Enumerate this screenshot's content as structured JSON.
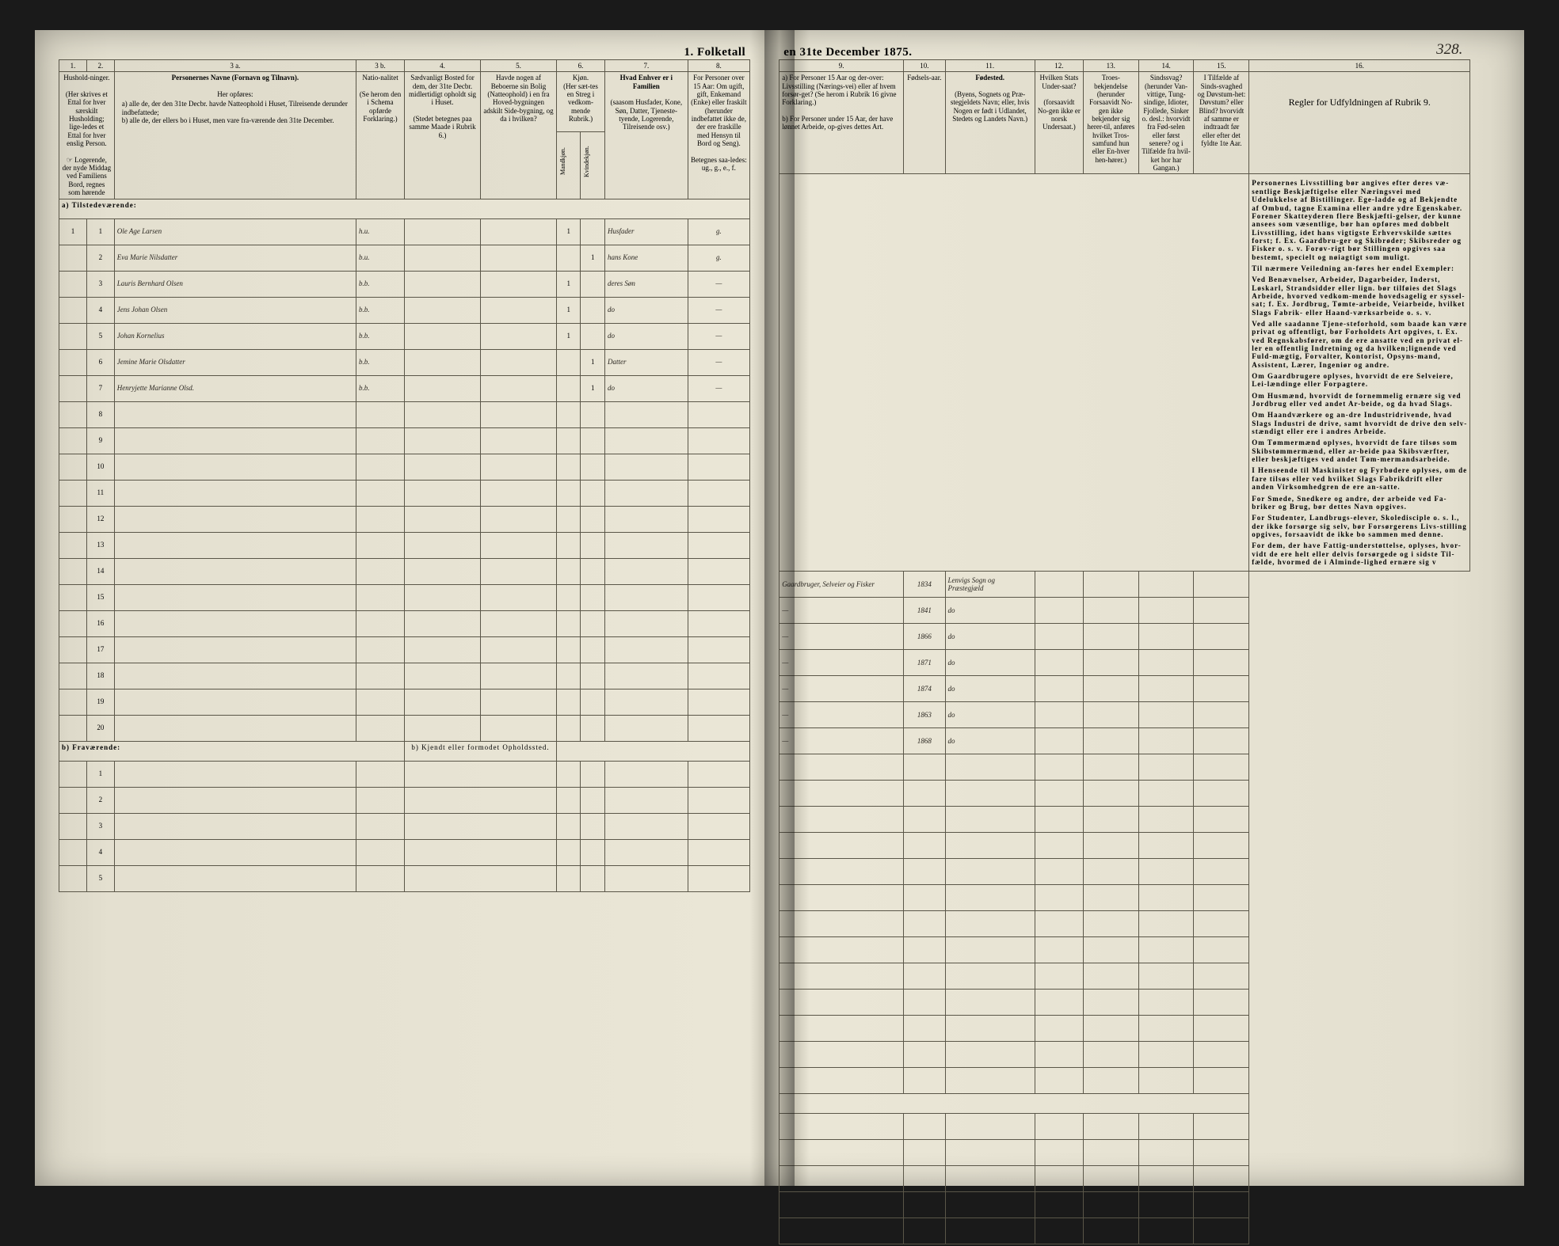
{
  "title_left": "1. Folketall",
  "title_right": "en 31te December 1875.",
  "page_number": "328.",
  "left_cols": {
    "c1": "1.",
    "c2": "2.",
    "c3a": "3 a.",
    "c3b": "3 b.",
    "c4": "4.",
    "c5": "5.",
    "c6": "6.",
    "c7": "7.",
    "c8": "8."
  },
  "right_cols": {
    "c9": "9.",
    "c10": "10.",
    "c11": "11.",
    "c12": "12.",
    "c13": "13.",
    "c14": "14.",
    "c15": "15.",
    "c16": "16."
  },
  "left_headers": {
    "h1": "Hushold-ninger.",
    "h1b": "(Her skrives et Ettal for hver særskilt Husholding; lige-ledes et Ettal for hver enslig Person.",
    "h1c": "☞ Logerende, der nyde Middag ved Familiens Bord, regnes som hørende",
    "h3a": "Personernes Navne (Fornavn og Tilnavn).",
    "h3a2": "Her opføres:",
    "h3a3": "a) alle de, der den 31te Decbr. havde Natteophold i Huset, Tilreisende derunder indbefattede;",
    "h3a4": "b) alle de, der ellers bo i Huset, men vare fra-værende den 31te December.",
    "h3b": "Natio-nalitet",
    "h3b2": "(Se herom den i Schema opførde Forklaring.)",
    "h4": "Sædvanligt Bosted for dem, der 31te Decbr. midlertidigt opholdt sig i Huset.",
    "h4b": "(Stedet betegnes paa samme Maade i Rubrik 6.)",
    "h5": "Havde nogen af Beboerne sin Bolig (Natteophold) i en fra Hoved-bygningen adskilt Side-bygning, og da i hvilken?",
    "h6": "Kjøn.",
    "h6a": "(Her sæt-tes en Streg i vedkom-mende Rubrik.)",
    "h6m": "Mandkjøn.",
    "h6k": "Kvindekjøn.",
    "h7": "Hvad Enhver er i Familien",
    "h7b": "(saasom Husfader, Kone, Søn, Datter, Tjeneste-tyende, Logerende, Tilreisende osv.)",
    "h8": "For Personer over 15 Aar: Om ugift, gift, Enkemand (Enke) eller fraskilt",
    "h8b": "(herunder indbefattet ikke de, der ere fraskille med Hensyn til Bord og Seng).",
    "h8c": "Betegnes saa-ledes: ug., g., e., f."
  },
  "right_headers": {
    "h9a": "a) For Personer 15 Aar og der-over: Livsstilling (Nærings-vei) eller af hvem forsør-get? (Se herom i Rubrik 16 givne Forklaring.)",
    "h9b": "b) For Personer under 15 Aar, der have lønnet Arbeide, op-gives dettes Art.",
    "h10": "Fødsels-aar.",
    "h11": "Fødested.",
    "h11b": "(Byens, Sognets og Præ-stegjeldets Navn; eller, hvis Nogen er født i Udlandet, Stedets og Landets Navn.)",
    "h12": "Hvilken Stats Under-saat?",
    "h12b": "(forsaavidt No-gen ikke er norsk Undersaat.)",
    "h13": "Troes-bekjendelse",
    "h13b": "(herunder Forsaavidt No-gen ikke bekjender sig herer-til, anføres hvilket Tros-samfund hun eller En-hver hen-hører.)",
    "h14": "Sindssvag?",
    "h14b": "(herunder Van-vittige, Tung-sindige, Idioter, Fjollede, Sinker o. desl.: hvorvidt fra Fød-selen eller først senere? og i Tilfælde fra hvil-ket hor har Gangan.)",
    "h15": "I Tilfælde af Sinds-svaghed og Døvstum-het:",
    "h15b": "Døvstum? eller Blind? hvorvidt af samme er indtraadt før eller efter det fyldte 1te Aar.",
    "h16": "Regler for Udfyldningen af Rubrik 9."
  },
  "section_a": "a)   Tilstedeværende:",
  "section_b": "b)   Fraværende:",
  "section_b_col": "b) Kjendt eller formodet Opholdssted.",
  "rows": [
    {
      "n": "1",
      "name": "Ole Age Larsen",
      "nat": "h.u.",
      "m": "1",
      "k": "",
      "role": "Husfader",
      "stat": "g.",
      "occ": "Gaardbruger, Selveier og Fisker",
      "year": "1834",
      "place": "Lenvigs Sogn og Præstegjæld"
    },
    {
      "n": "2",
      "name": "Eva Marie Nilsdatter",
      "nat": "b.u.",
      "m": "",
      "k": "1",
      "role": "hans Kone",
      "stat": "g.",
      "occ": "—",
      "year": "1841",
      "place": "do"
    },
    {
      "n": "3",
      "name": "Lauris Bernhard Olsen",
      "nat": "b.b.",
      "m": "1",
      "k": "",
      "role": "deres Søn",
      "stat": "—",
      "occ": "—",
      "year": "1866",
      "place": "do"
    },
    {
      "n": "4",
      "name": "Jens Johan Olsen",
      "nat": "b.b.",
      "m": "1",
      "k": "",
      "role": "do",
      "stat": "—",
      "occ": "—",
      "year": "1871",
      "place": "do"
    },
    {
      "n": "5",
      "name": "Johan Kornelius",
      "nat": "b.b.",
      "m": "1",
      "k": "",
      "role": "do",
      "stat": "—",
      "occ": "—",
      "year": "1874",
      "place": "do"
    },
    {
      "n": "6",
      "name": "Jemine Marie Olsdatter",
      "nat": "b.b.",
      "m": "",
      "k": "1",
      "role": "Datter",
      "stat": "—",
      "occ": "—",
      "year": "1863",
      "place": "do"
    },
    {
      "n": "7",
      "name": "Henryjette Marianne Olsd.",
      "nat": "b.b.",
      "m": "",
      "k": "1",
      "role": "do",
      "stat": "—",
      "occ": "—",
      "year": "1868",
      "place": "do"
    }
  ],
  "blank_left": [
    "8",
    "9",
    "10",
    "11",
    "12",
    "13",
    "14",
    "15",
    "16",
    "17",
    "18",
    "19",
    "20"
  ],
  "blank_b": [
    "1",
    "2",
    "3",
    "4",
    "5"
  ],
  "rules": {
    "p1": "Personernes Livsstilling bør angives efter deres væ-sentlige Beskjæftigelse eller Næringsvei med Udelukkelse af Bistillinger. Ege-ladde og af Bekjendte af Ombud, tagne Examina eller andre ydre Egenskaber. Forener Skatteyderen flere Beskjæfti-gelser, der kunne ansees som væsentlige, bør han opføres med dobbelt Livsstilling, idet hans vigtigste Erhvervskilde sættes forst; f. Ex. Gaardbru-ger og Skibrøder; Skibsreder og Fisker o. s. v. Forøv-rigt bør Stillingen opgives saa",
    "p1b": "bestemt, specielt og nøiagtigt",
    "p1c": "som muligt.",
    "p2": "Til nærmere Veiledning an-føres her endel Exempler:",
    "p3": "Ved Benævnelser, Arbeider, Dagarbeider, Inderst, Løskarl, Strandsidder eller lign. bør tilføies det Slags Arbeide, hvorved vedkom-mende hovedsagelig er syssel-sat; f. Ex. Jordbrug, Tømte-arbeide, Veiarbeide, hvilket Slags Fabrik- eller Haand-værksarbeide o. s. v.",
    "p4": "Ved alle saadanne Tjene-steforhold, som baade kan være privat og offentligt, bør Forholdets Art opgives, t. Ex. ved Regnskabsfører, om de ere ansatte ved en privat el-ler en offentlig Indretning og da hvilken;lignende ved Fuld-mægtig, Forvalter, Kontorist, Opsyns-mand, Assistent, Lærer, Ingeniør og andre.",
    "p5": "Om Gaardbrugere oplyses, hvorvidt de ere Selveiere, Lei-lændinge eller Forpagtere.",
    "p6": "Om Husmænd, hvorvidt de fornemmelig ernære sig ved Jordbrug eller ved andet Ar-beide, og da hvad Slags.",
    "p7": "Om Haandværkere og an-dre Industridrivende, hvad Slags Industri de drive, samt hvorvidt de drive den selv-stændigt eller ere i andres Arbeide.",
    "p8": "Om Tømmermænd oplyses, hvorvidt de fare tilsøs som Skibstømmermænd, eller ar-beide paa Skibsværfter, eller beskjæftiges ved andet Tøm-mermandsarbeide.",
    "p9": "I Henseende til Maskinister og Fyrbødere oplyses, om de fare tilsøs eller ved hvilket Slags Fabrikdrift eller anden Virksomhedgren de ere an-satte.",
    "p10": "For Smede, Snedkere og andre, der arbeide ved Fa-briker og Brug, bør dettes Navn opgives.",
    "p11": "For Studenter, Landbrugs-elever, Skoledisciple o. s. l., der ikke forsørge sig selv, bør Forsørgerens Livs-stilling opgives, forsaavidt de ikke bo sammen med denne.",
    "p12": "For dem, der have Fattig-understøttelse, oplyses, hvor-vidt de ere helt eller delvis forsørgede og i sidste Til-fælde, hvormed de i Alminde-lighed ernære sig v"
  },
  "colors": {
    "paper": "#e8e4d4",
    "ink": "#2a2620",
    "rule": "#5a5648"
  }
}
